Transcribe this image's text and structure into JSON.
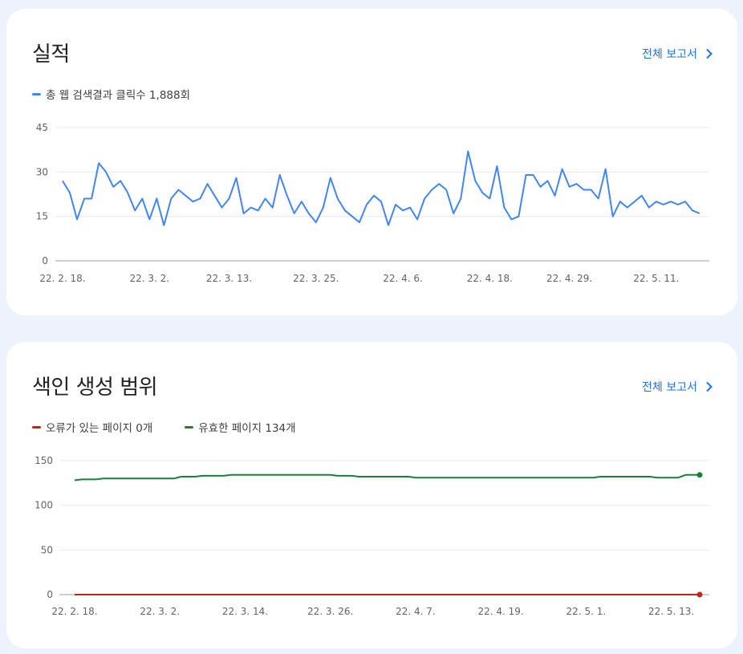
{
  "colors": {
    "blue": "#4285f4",
    "red": "#c5221f",
    "green": "#188038",
    "link": "#1a73e8"
  },
  "performance": {
    "title": "실적",
    "report_link": "전체 보고서",
    "legend": {
      "label": "총 웹 검색결과 클릭수 1,888회"
    },
    "chart_data": {
      "type": "line",
      "ylim": [
        0,
        45
      ],
      "yticks": [
        0,
        15,
        30,
        45
      ],
      "xtick_labels": [
        "22. 2. 18.",
        "22. 3. 2.",
        "22. 3. 13.",
        "22. 3. 25.",
        "22. 4. 6.",
        "22. 4. 18.",
        "22. 4. 29.",
        "22. 5. 11."
      ],
      "xtick_day_index": [
        0,
        12,
        23,
        35,
        47,
        59,
        70,
        82
      ],
      "x_start": "22. 2. 18.",
      "series": [
        {
          "name": "총 웹 검색결과 클릭수",
          "color": "#4285f4",
          "values": [
            27,
            23,
            14,
            21,
            21,
            33,
            30,
            25,
            27,
            23,
            17,
            21,
            14,
            21,
            12,
            21,
            24,
            22,
            20,
            21,
            26,
            22,
            18,
            21,
            28,
            16,
            18,
            17,
            21,
            18,
            29,
            22,
            16,
            20,
            16,
            13,
            18,
            28,
            21,
            17,
            15,
            13,
            19,
            22,
            20,
            12,
            19,
            17,
            18,
            14,
            21,
            24,
            26,
            24,
            16,
            21,
            37,
            27,
            23,
            21,
            32,
            18,
            14,
            15,
            29,
            29,
            25,
            27,
            22,
            31,
            25,
            26,
            24,
            24,
            21,
            31,
            15,
            20,
            18,
            20,
            22,
            18,
            20,
            19,
            20,
            19,
            20,
            17,
            16
          ]
        }
      ]
    }
  },
  "coverage": {
    "title": "색인 생성 범위",
    "report_link": "전체 보고서",
    "legend": [
      {
        "label": "오류가 있는 페이지 0개",
        "color": "#c5221f"
      },
      {
        "label": "유효한 페이지 134개",
        "color": "#188038"
      }
    ],
    "chart_data": {
      "type": "line",
      "ylim": [
        0,
        150
      ],
      "yticks": [
        0,
        50,
        100,
        150
      ],
      "xtick_labels": [
        "22. 2. 18.",
        "22. 3. 2.",
        "22. 3. 14.",
        "22. 3. 26.",
        "22. 4. 7.",
        "22. 4. 19.",
        "22. 5. 1.",
        "22. 5. 13."
      ],
      "xtick_day_index": [
        0,
        12,
        24,
        36,
        48,
        60,
        72,
        84
      ],
      "x_start": "22. 2. 18.",
      "series": [
        {
          "name": "오류가 있는 페이지",
          "color": "#c5221f",
          "values": [
            0,
            0,
            0,
            0,
            0,
            0,
            0,
            0,
            0,
            0,
            0,
            0,
            0,
            0,
            0,
            0,
            0,
            0,
            0,
            0,
            0,
            0,
            0,
            0,
            0,
            0,
            0,
            0,
            0,
            0,
            0,
            0,
            0,
            0,
            0,
            0,
            0,
            0,
            0,
            0,
            0,
            0,
            0,
            0,
            0,
            0,
            0,
            0,
            0,
            0,
            0,
            0,
            0,
            0,
            0,
            0,
            0,
            0,
            0,
            0,
            0,
            0,
            0,
            0,
            0,
            0,
            0,
            0,
            0,
            0,
            0,
            0,
            0,
            0,
            0,
            0,
            0,
            0,
            0,
            0,
            0,
            0,
            0,
            0,
            0,
            0,
            0,
            0,
            0
          ]
        },
        {
          "name": "유효한 페이지",
          "color": "#188038",
          "values": [
            128,
            129,
            129,
            129,
            130,
            130,
            130,
            130,
            130,
            130,
            130,
            130,
            130,
            130,
            130,
            132,
            132,
            132,
            133,
            133,
            133,
            133,
            134,
            134,
            134,
            134,
            134,
            134,
            134,
            134,
            134,
            134,
            134,
            134,
            134,
            134,
            134,
            133,
            133,
            133,
            132,
            132,
            132,
            132,
            132,
            132,
            132,
            132,
            131,
            131,
            131,
            131,
            131,
            131,
            131,
            131,
            131,
            131,
            131,
            131,
            131,
            131,
            131,
            131,
            131,
            131,
            131,
            131,
            131,
            131,
            131,
            131,
            131,
            131,
            132,
            132,
            132,
            132,
            132,
            132,
            132,
            132,
            131,
            131,
            131,
            131,
            134,
            134,
            134
          ]
        }
      ]
    }
  }
}
